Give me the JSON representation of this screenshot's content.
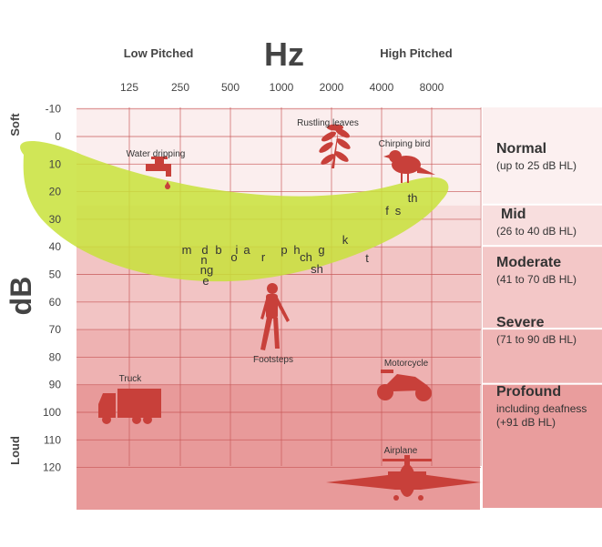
{
  "header": {
    "low_label": "Low Pitched",
    "hz_label": "Hz",
    "high_label": "High Pitched"
  },
  "axis": {
    "y_title": "dB",
    "soft_label": "Soft",
    "loud_label": "Loud"
  },
  "chart_data": {
    "type": "audiogram",
    "x_ticks": [
      "125",
      "250",
      "500",
      "1000",
      "2000",
      "4000",
      "8000"
    ],
    "y_ticks": [
      "-10",
      "0",
      "10",
      "20",
      "30",
      "40",
      "50",
      "60",
      "70",
      "80",
      "90",
      "100",
      "110",
      "120"
    ],
    "ylim": [
      -10,
      120
    ],
    "zones": [
      {
        "title": "Normal",
        "subtitle": "(up to 25 dB HL)",
        "from": -10,
        "to": 25,
        "color": "#fbeeee",
        "panel_color": "#fcf0f0"
      },
      {
        "title": "Mid",
        "subtitle": "(26 to 40 dB HL)",
        "from": 25,
        "to": 40,
        "color": "#f7dcdc",
        "panel_color": "#f8dede"
      },
      {
        "title": "Moderate",
        "subtitle": "(41 to 70 dB HL)",
        "from": 40,
        "to": 70,
        "color": "#f2c4c4",
        "panel_color": "#f3c7c7"
      },
      {
        "title": "Severe",
        "subtitle": "(71 to 90 dB HL)",
        "from": 70,
        "to": 90,
        "color": "#eeb2b2",
        "panel_color": "#efb5b5"
      },
      {
        "title": "Profound",
        "subtitle": "including deafness",
        "subtitle2": "(+91 dB HL)",
        "from": 90,
        "to": 130,
        "color": "#e89a9a",
        "panel_color": "#e99d9d"
      }
    ],
    "speech_banana_color": "#c8e23a",
    "phonemes": [
      {
        "text": "m",
        "freq": "250",
        "db": 40
      },
      {
        "text": "d",
        "freq": "250",
        "db": 40
      },
      {
        "text": "b",
        "freq": "250",
        "db": 40
      },
      {
        "text": "n",
        "freq": "250",
        "db": 44
      },
      {
        "text": "ng",
        "freq": "250",
        "db": 48
      },
      {
        "text": "e",
        "freq": "250",
        "db": 53
      },
      {
        "text": "i",
        "freq": "500",
        "db": 40
      },
      {
        "text": "a",
        "freq": "500",
        "db": 40
      },
      {
        "text": "o",
        "freq": "500",
        "db": 43
      },
      {
        "text": "r",
        "freq": "500",
        "db": 43
      },
      {
        "text": "p",
        "freq": "1000",
        "db": 40
      },
      {
        "text": "h",
        "freq": "1000",
        "db": 40
      },
      {
        "text": "g",
        "freq": "2000",
        "db": 40
      },
      {
        "text": "ch",
        "freq": "2000",
        "db": 43
      },
      {
        "text": "sh",
        "freq": "2000",
        "db": 47
      },
      {
        "text": "k",
        "freq": "2000",
        "db": 37
      },
      {
        "text": "t",
        "freq": "4000",
        "db": 44
      },
      {
        "text": "f",
        "freq": "4000",
        "db": 27
      },
      {
        "text": "s",
        "freq": "4000",
        "db": 27
      },
      {
        "text": "th",
        "freq": "4000",
        "db": 23
      }
    ],
    "sounds": [
      {
        "label": "Water dripping",
        "freq": "250",
        "db": 10,
        "icon": "faucet-icon"
      },
      {
        "label": "Rustling leaves",
        "freq": "2000",
        "db": 5,
        "icon": "leaves-icon"
      },
      {
        "label": "Chirping bird",
        "freq": "4000",
        "db": 10,
        "icon": "bird-icon"
      },
      {
        "label": "Footsteps",
        "freq": "1000",
        "db": 65,
        "icon": "person-icon"
      },
      {
        "label": "Truck",
        "freq": "125",
        "db": 95,
        "icon": "truck-icon"
      },
      {
        "label": "Motorcycle",
        "freq": "4000",
        "db": 90,
        "icon": "motorcycle-icon"
      },
      {
        "label": "Airplane",
        "freq": "4000",
        "db": 125,
        "icon": "airplane-icon"
      }
    ],
    "colors": {
      "grid": "#c85858",
      "icon": "#c8403a"
    }
  }
}
